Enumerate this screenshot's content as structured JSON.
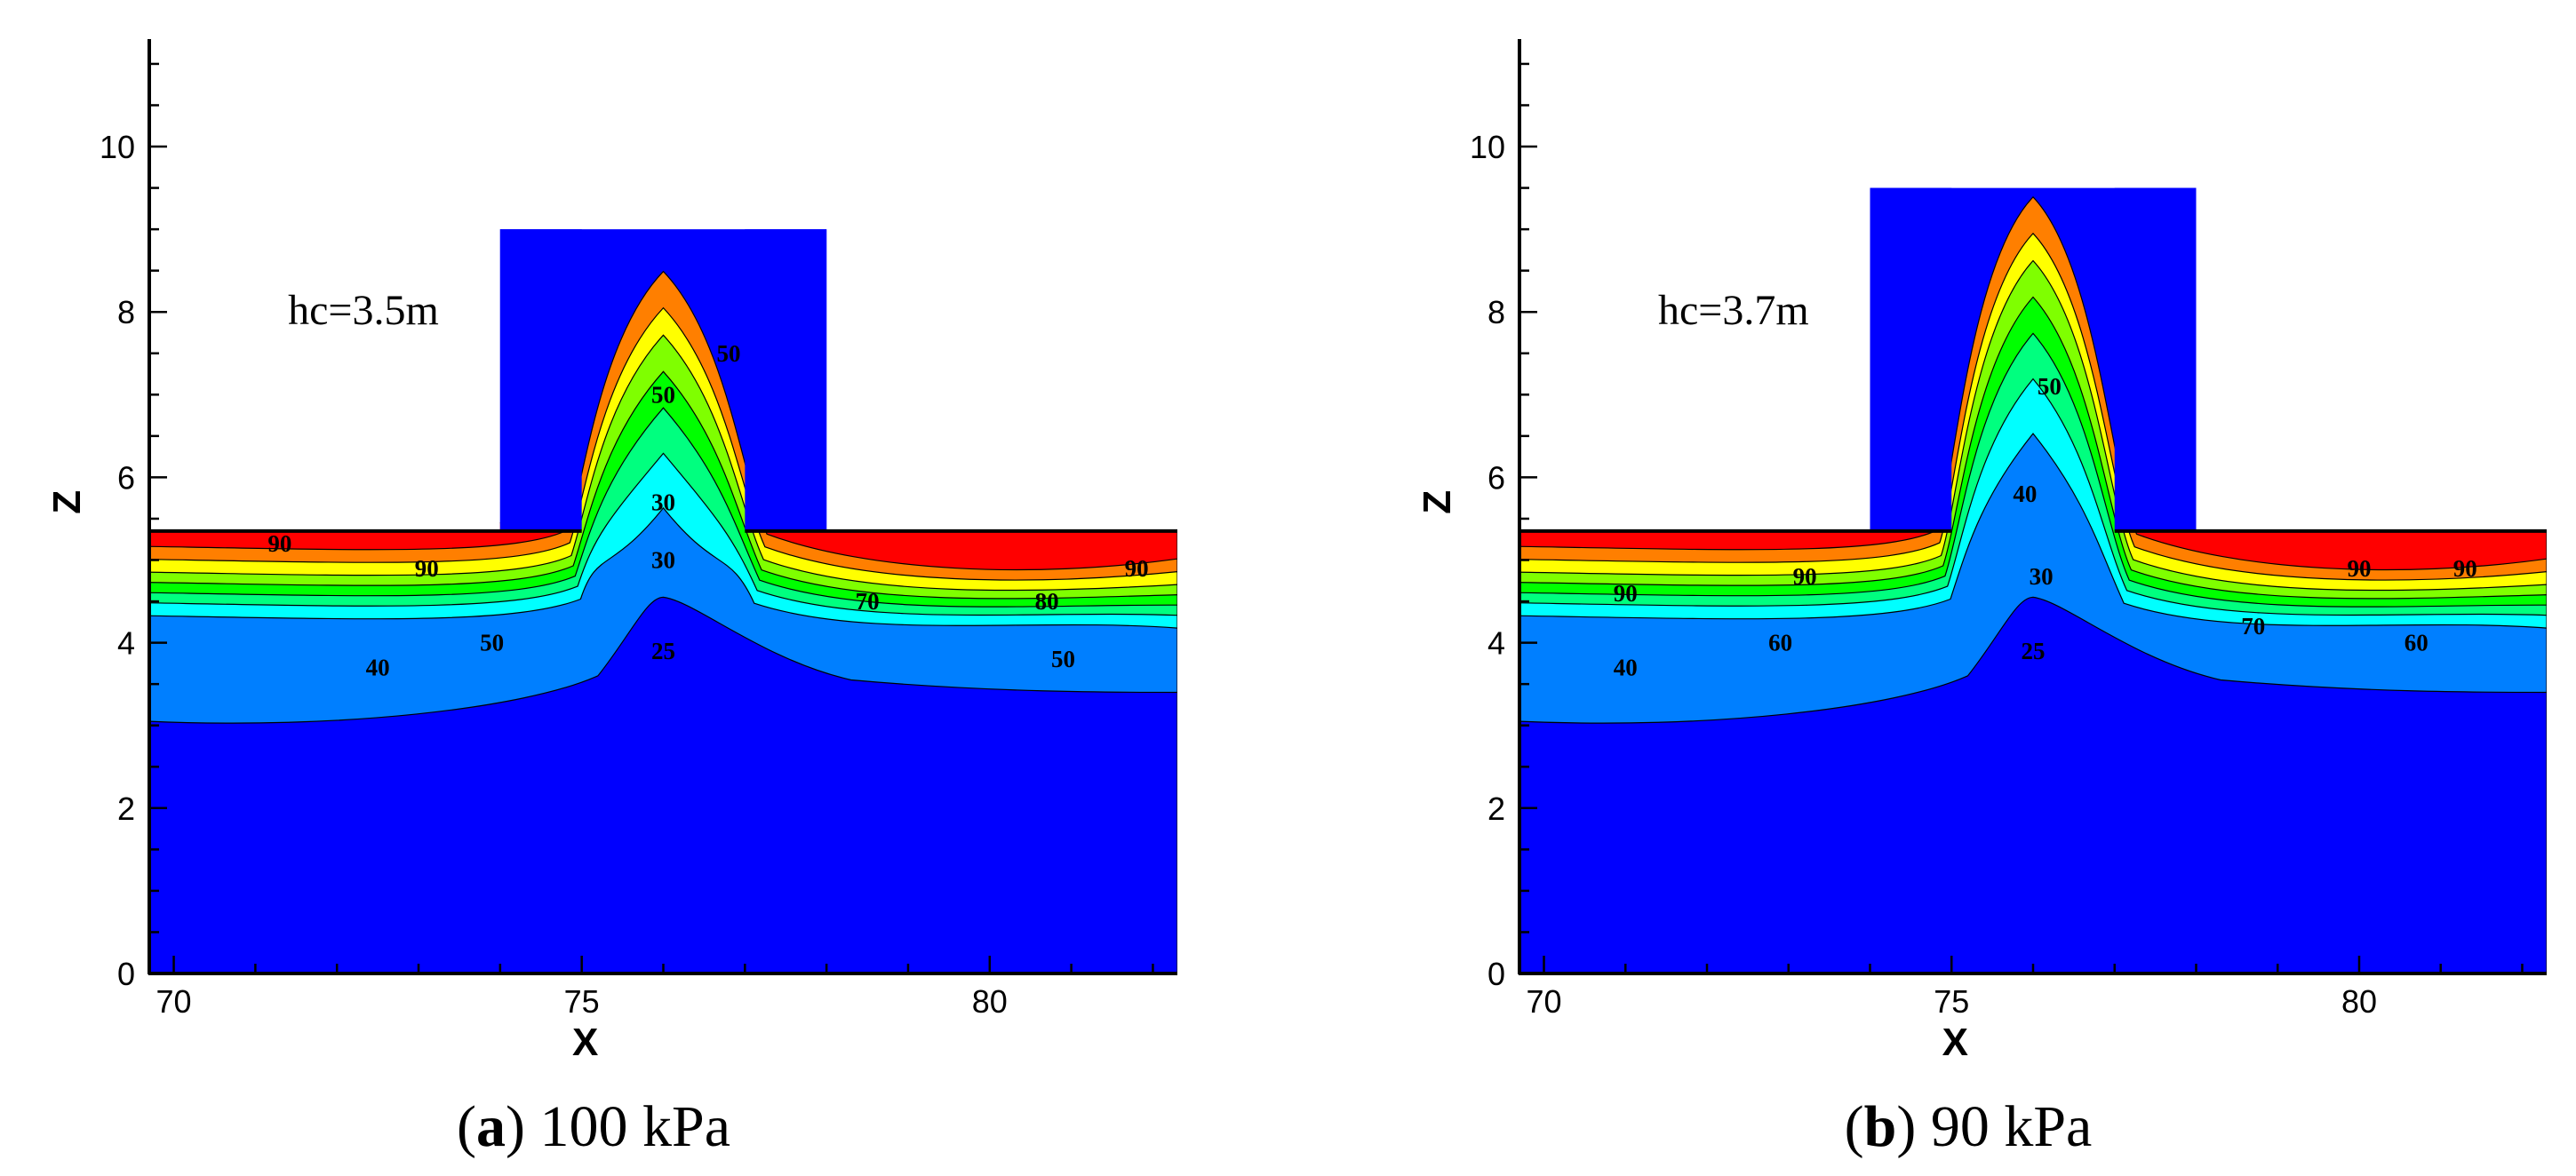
{
  "chart_data": [
    {
      "type": "contour",
      "panel": "a",
      "caption_letter": "a",
      "caption_text": " 100 kPa",
      "xlabel": "X",
      "ylabel": "Z",
      "xlim": [
        69.7,
        82.3
      ],
      "ylim": [
        0,
        11.3
      ],
      "xticks": [
        70,
        75,
        80
      ],
      "yticks": [
        0,
        2,
        4,
        6,
        8,
        10
      ],
      "annotation": "hc=3.5m",
      "stack_left": 74.0,
      "stack_right": 78.0,
      "stack_top": 9.0,
      "channel_left": 75.0,
      "channel_right": 77.0,
      "floor_top": 5.35,
      "plume_height": 5.3,
      "contour_labels": [
        {
          "text": "90",
          "x": 71.3,
          "y": 5.2
        },
        {
          "text": "90",
          "x": 73.1,
          "y": 4.9
        },
        {
          "text": "50",
          "x": 73.9,
          "y": 4.0
        },
        {
          "text": "40",
          "x": 72.5,
          "y": 3.7
        },
        {
          "text": "25",
          "x": 76.0,
          "y": 3.9
        },
        {
          "text": "30",
          "x": 76.0,
          "y": 5.0
        },
        {
          "text": "30",
          "x": 76.0,
          "y": 5.7
        },
        {
          "text": "50",
          "x": 76.0,
          "y": 7.0
        },
        {
          "text": "50",
          "x": 76.8,
          "y": 7.5
        },
        {
          "text": "70",
          "x": 78.5,
          "y": 4.5
        },
        {
          "text": "80",
          "x": 80.7,
          "y": 4.5
        },
        {
          "text": "90",
          "x": 81.8,
          "y": 4.9
        },
        {
          "text": "50",
          "x": 80.9,
          "y": 3.8
        }
      ]
    },
    {
      "type": "contour",
      "panel": "b",
      "caption_letter": "b",
      "caption_text": " 90 kPa",
      "xlabel": "X",
      "ylabel": "Z",
      "xlim": [
        69.7,
        82.3
      ],
      "ylim": [
        0,
        11.3
      ],
      "xticks": [
        70,
        75,
        80
      ],
      "yticks": [
        0,
        2,
        4,
        6,
        8,
        10
      ],
      "annotation": "hc=3.7m",
      "stack_left": 74.0,
      "stack_right": 78.0,
      "stack_top": 9.5,
      "channel_left": 75.0,
      "channel_right": 77.0,
      "floor_top": 5.35,
      "plume_height": 6.2,
      "contour_labels": [
        {
          "text": "90",
          "x": 71.0,
          "y": 4.6
        },
        {
          "text": "90",
          "x": 73.2,
          "y": 4.8
        },
        {
          "text": "60",
          "x": 72.9,
          "y": 4.0
        },
        {
          "text": "40",
          "x": 71.0,
          "y": 3.7
        },
        {
          "text": "25",
          "x": 76.0,
          "y": 3.9
        },
        {
          "text": "30",
          "x": 76.1,
          "y": 4.8
        },
        {
          "text": "40",
          "x": 75.9,
          "y": 5.8
        },
        {
          "text": "50",
          "x": 76.2,
          "y": 7.1
        },
        {
          "text": "70",
          "x": 78.7,
          "y": 4.2
        },
        {
          "text": "90",
          "x": 80.0,
          "y": 4.9
        },
        {
          "text": "90",
          "x": 81.3,
          "y": 4.9
        },
        {
          "text": "60",
          "x": 80.7,
          "y": 4.0
        }
      ]
    }
  ],
  "colors": {
    "c90": "#ff0000",
    "c80": "#ff7f00",
    "c70": "#ffff00",
    "c60": "#7fff00",
    "c50": "#00ff00",
    "c45": "#00ff7f",
    "c40": "#00ffff",
    "c30": "#007fff",
    "c25": "#0000ff"
  }
}
